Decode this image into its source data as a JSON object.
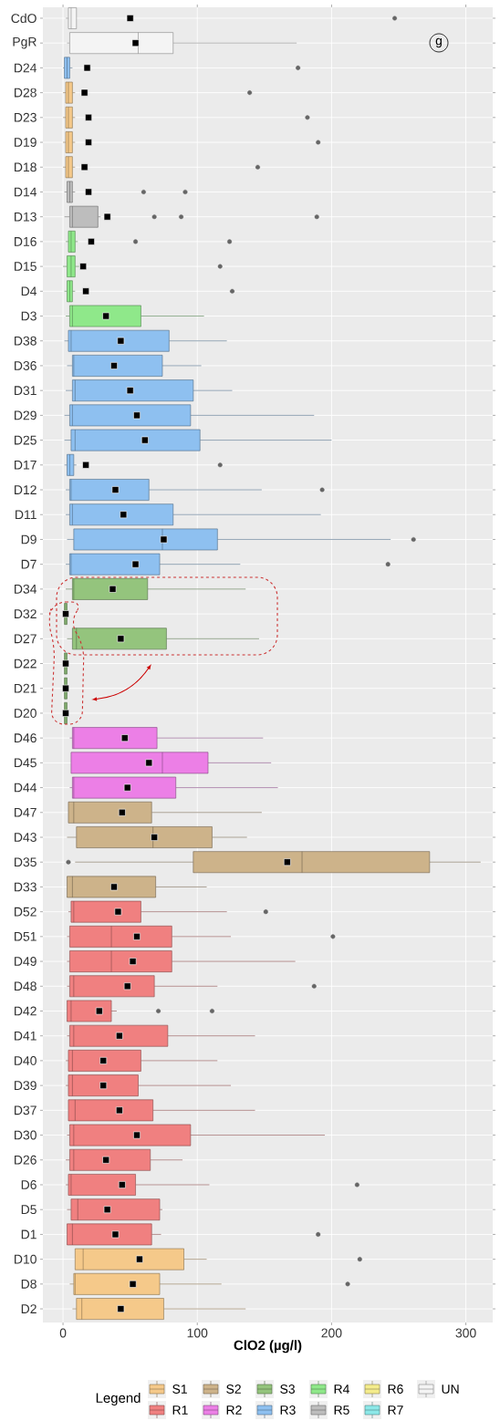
{
  "chart_data": {
    "type": "box",
    "orientation": "horizontal",
    "xlabel": "ClO2 (µg/l)",
    "legend_title": "Legend",
    "legend": "bottom",
    "grid": true,
    "annotations": [
      "g"
    ],
    "xlim": [
      -15,
      320
    ],
    "xticks": [
      0,
      100,
      200,
      300
    ],
    "categories": [
      "CdO",
      "PgR",
      "D24",
      "D28",
      "D23",
      "D19",
      "D18",
      "D14",
      "D13",
      "D16",
      "D15",
      "D4",
      "D3",
      "D38",
      "D36",
      "D31",
      "D29",
      "D25",
      "D17",
      "D12",
      "D11",
      "D9",
      "D7",
      "D34",
      "D32",
      "D27",
      "D22",
      "D21",
      "D20",
      "D46",
      "D45",
      "D44",
      "D47",
      "D43",
      "D35",
      "D33",
      "D52",
      "D51",
      "D49",
      "D48",
      "D42",
      "D41",
      "D40",
      "D39",
      "D37",
      "D30",
      "D26",
      "D6",
      "D5",
      "D1",
      "D10",
      "D8",
      "D2"
    ],
    "series": [
      {
        "name": "S1",
        "color": "#f5c98a",
        "boxes": [
          null,
          null,
          null,
          {
            "low": 0,
            "q1": 2,
            "median": 4,
            "q3": 7,
            "high": 9,
            "mean": 16,
            "outliers": [
              139
            ]
          },
          {
            "low": 0,
            "q1": 2,
            "median": 4,
            "q3": 7,
            "high": 9,
            "mean": 19,
            "outliers": [
              182
            ]
          },
          {
            "low": 0,
            "q1": 2,
            "median": 4,
            "q3": 7,
            "high": 9,
            "mean": 19,
            "outliers": [
              190
            ]
          },
          {
            "low": 0,
            "q1": 2,
            "median": 4,
            "q3": 7,
            "high": 9,
            "mean": 16,
            "outliers": [
              145
            ]
          },
          null,
          null,
          null,
          null,
          null,
          null,
          null,
          null,
          null,
          null,
          null,
          null,
          null,
          null,
          null,
          null,
          null,
          null,
          null,
          null,
          null,
          null,
          null,
          null,
          null,
          null,
          null,
          null,
          null,
          null,
          null,
          null,
          null,
          null,
          null,
          null,
          null,
          null,
          null,
          null,
          null,
          null,
          null,
          {
            "low": 9,
            "q1": 9,
            "median": 15,
            "q3": 90,
            "high": 107,
            "mean": 57,
            "outliers": [
              221
            ]
          },
          {
            "low": 5,
            "q1": 8,
            "median": 9,
            "q3": 72,
            "high": 118,
            "mean": 52,
            "outliers": [
              212
            ]
          },
          {
            "low": 7,
            "q1": 10,
            "median": 14,
            "q3": 75,
            "high": 136,
            "mean": 43
          }
        ]
      },
      {
        "name": "R1",
        "color": "#f08080",
        "boxes": [
          null,
          null,
          null,
          null,
          null,
          null,
          null,
          null,
          null,
          null,
          null,
          null,
          null,
          null,
          null,
          null,
          null,
          null,
          null,
          null,
          null,
          null,
          null,
          null,
          null,
          null,
          null,
          null,
          null,
          null,
          null,
          null,
          null,
          null,
          null,
          null,
          {
            "low": 4,
            "q1": 6,
            "median": 8,
            "q3": 58,
            "high": 122,
            "mean": 41,
            "outliers": [
              151
            ]
          },
          {
            "low": 3,
            "q1": 5,
            "median": 36,
            "q3": 81,
            "high": 125,
            "mean": 55,
            "outliers": [
              201
            ]
          },
          {
            "low": 3,
            "q1": 5,
            "median": 36,
            "q3": 81,
            "high": 173,
            "mean": 52
          },
          {
            "low": 3,
            "q1": 5,
            "median": 8,
            "q3": 68,
            "high": 115,
            "mean": 48,
            "outliers": [
              187
            ]
          },
          {
            "low": 3,
            "q1": 3,
            "median": 6,
            "q3": 36,
            "high": 40,
            "mean": 27,
            "outliers": [
              71,
              111
            ]
          },
          {
            "low": 3,
            "q1": 5,
            "median": 8,
            "q3": 78,
            "high": 143,
            "mean": 42
          },
          {
            "low": 2,
            "q1": 4,
            "median": 7,
            "q3": 58,
            "high": 115,
            "mean": 30
          },
          {
            "low": 2,
            "q1": 4,
            "median": 7,
            "q3": 56,
            "high": 125,
            "mean": 30
          },
          {
            "low": 4,
            "q1": 4,
            "median": 9,
            "q3": 67,
            "high": 143,
            "mean": 42
          },
          {
            "low": 3,
            "q1": 5,
            "median": 8,
            "q3": 95,
            "high": 195,
            "mean": 55
          },
          {
            "low": 2,
            "q1": 5,
            "median": 8,
            "q3": 65,
            "high": 89,
            "mean": 32
          },
          {
            "low": 2,
            "q1": 4,
            "median": 6,
            "q3": 54,
            "high": 109,
            "mean": 44,
            "outliers": [
              219
            ]
          },
          {
            "low": 3,
            "q1": 6,
            "median": 11,
            "q3": 72,
            "high": 74,
            "mean": 33
          },
          {
            "low": 3,
            "q1": 3,
            "median": 7,
            "q3": 66,
            "high": 73,
            "mean": 39,
            "outliers": [
              190
            ]
          },
          null,
          null,
          null
        ]
      },
      {
        "name": "S2",
        "color": "#cdb38a",
        "boxes": [
          null,
          null,
          null,
          null,
          null,
          null,
          null,
          null,
          null,
          null,
          null,
          null,
          null,
          null,
          null,
          null,
          null,
          null,
          null,
          null,
          null,
          null,
          null,
          null,
          null,
          null,
          null,
          null,
          null,
          null,
          null,
          null,
          {
            "low": 4,
            "q1": 4,
            "median": 8,
            "q3": 66,
            "high": 148,
            "mean": 44
          },
          {
            "low": 3,
            "q1": 10,
            "median": 67,
            "q3": 111,
            "high": 137,
            "mean": 68
          },
          {
            "low": 9,
            "q1": 97,
            "median": 178,
            "q3": 273,
            "high": 311,
            "mean": 167,
            "outliers": [
              4
            ]
          },
          {
            "low": 3,
            "q1": 3,
            "median": 7,
            "q3": 69,
            "high": 107,
            "mean": 38
          },
          null,
          null,
          null,
          null,
          null,
          null,
          null,
          null,
          null,
          null,
          null,
          null,
          null,
          null,
          null,
          null,
          null
        ]
      },
      {
        "name": "R2",
        "color": "#ec7fe6",
        "boxes": [
          null,
          null,
          null,
          null,
          null,
          null,
          null,
          null,
          null,
          null,
          null,
          null,
          null,
          null,
          null,
          null,
          null,
          null,
          null,
          null,
          null,
          null,
          null,
          null,
          null,
          null,
          null,
          null,
          null,
          {
            "low": 5,
            "q1": 7,
            "median": 8,
            "q3": 70,
            "high": 149,
            "mean": 46
          },
          {
            "low": 6,
            "q1": 6,
            "median": 74,
            "q3": 108,
            "high": 155,
            "mean": 64
          },
          {
            "low": 5,
            "q1": 7,
            "median": 8,
            "q3": 84,
            "high": 160,
            "mean": 48
          },
          null,
          null,
          null,
          null,
          null,
          null,
          null,
          null,
          null,
          null,
          null,
          null,
          null,
          null,
          null,
          null,
          null,
          null,
          null,
          null,
          null
        ]
      },
      {
        "name": "S3",
        "color": "#94c47d",
        "boxes": [
          null,
          null,
          null,
          null,
          null,
          null,
          null,
          null,
          null,
          null,
          null,
          null,
          null,
          null,
          null,
          null,
          null,
          null,
          null,
          null,
          null,
          null,
          null,
          {
            "low": 2,
            "q1": 7,
            "median": 8,
            "q3": 63,
            "high": 136,
            "mean": 37
          },
          {
            "low": 0,
            "q1": 1,
            "median": 2,
            "q3": 3,
            "high": 4,
            "mean": 2
          },
          {
            "low": 3,
            "q1": 7,
            "median": 10,
            "q3": 77,
            "high": 146,
            "mean": 43
          },
          {
            "low": 0,
            "q1": 1,
            "median": 2,
            "q3": 3,
            "high": 4,
            "mean": 2
          },
          {
            "low": 0,
            "q1": 1,
            "median": 2,
            "q3": 3,
            "high": 4,
            "mean": 2
          },
          {
            "low": 0,
            "q1": 1,
            "median": 2,
            "q3": 3,
            "high": 4,
            "mean": 2
          },
          null,
          null,
          null,
          null,
          null,
          null,
          null,
          null,
          null,
          null,
          null,
          null,
          null,
          null,
          null,
          null,
          null,
          null,
          null,
          null,
          null,
          null,
          null,
          null
        ]
      },
      {
        "name": "R3",
        "color": "#8ec0f0",
        "boxes": [
          null,
          null,
          {
            "low": 0,
            "q1": 1,
            "median": 3,
            "q3": 5,
            "high": 7,
            "mean": 18,
            "outliers": [
              175
            ]
          },
          null,
          null,
          null,
          null,
          null,
          null,
          null,
          null,
          null,
          null,
          {
            "low": 1,
            "q1": 4,
            "median": 6,
            "q3": 79,
            "high": 122,
            "mean": 43
          },
          {
            "low": 3,
            "q1": 7,
            "median": 8,
            "q3": 74,
            "high": 103,
            "mean": 38
          },
          {
            "low": 2,
            "q1": 7,
            "median": 9,
            "q3": 97,
            "high": 126,
            "mean": 50
          },
          {
            "low": 1,
            "q1": 5,
            "median": 7,
            "q3": 95,
            "high": 187,
            "mean": 55
          },
          {
            "low": 1,
            "q1": 6,
            "median": 9,
            "q3": 102,
            "high": 200,
            "mean": 61
          },
          {
            "low": 1,
            "q1": 3,
            "median": 5,
            "q3": 8,
            "high": 10,
            "mean": 17,
            "outliers": [
              117
            ]
          },
          {
            "low": 2,
            "q1": 5,
            "median": 6,
            "q3": 64,
            "high": 148,
            "mean": 39,
            "outliers": [
              193
            ]
          },
          {
            "low": 2,
            "q1": 5,
            "median": 7,
            "q3": 82,
            "high": 192,
            "mean": 45
          },
          {
            "low": 3,
            "q1": 8,
            "median": 74,
            "q3": 115,
            "high": 244,
            "mean": 75,
            "outliers": [
              261
            ]
          },
          {
            "low": 2,
            "q1": 5,
            "median": 6,
            "q3": 72,
            "high": 132,
            "mean": 54,
            "outliers": [
              242
            ]
          },
          null,
          null,
          null,
          null,
          null,
          null,
          null,
          null,
          null,
          null,
          null,
          null,
          null,
          null,
          null,
          null,
          null,
          null,
          null,
          null,
          null,
          null,
          null,
          null,
          null,
          null,
          null,
          null,
          null,
          null
        ]
      },
      {
        "name": "R4",
        "color": "#8fe88a",
        "boxes": [
          null,
          null,
          null,
          null,
          null,
          null,
          null,
          null,
          null,
          {
            "low": 2,
            "q1": 4,
            "median": 6,
            "q3": 9,
            "high": 11,
            "mean": 21,
            "outliers": [
              54,
              124
            ]
          },
          {
            "low": 0,
            "q1": 3,
            "median": 6,
            "q3": 9,
            "high": 12,
            "mean": 15,
            "outliers": [
              117
            ]
          },
          {
            "low": 1,
            "q1": 3,
            "median": 5,
            "q3": 7,
            "high": 9,
            "mean": 17,
            "outliers": [
              126
            ]
          },
          {
            "low": 2,
            "q1": 5,
            "median": 7,
            "q3": 58,
            "high": 105,
            "mean": 32
          },
          null,
          null,
          null,
          null,
          null,
          null,
          null,
          null,
          null,
          null,
          null,
          null,
          null,
          null,
          null,
          null,
          null,
          null,
          null,
          null,
          null,
          null,
          null,
          null,
          null,
          null,
          null,
          null,
          null,
          null,
          null,
          null,
          null,
          null,
          null,
          null,
          null,
          null,
          null,
          null
        ]
      },
      {
        "name": "R5",
        "color": "#bdbdbd",
        "boxes": [
          null,
          null,
          null,
          null,
          null,
          null,
          null,
          {
            "low": 1,
            "q1": 3,
            "median": 5,
            "q3": 7,
            "high": 9,
            "mean": 19,
            "outliers": [
              60,
              91
            ]
          },
          {
            "low": 1,
            "q1": 5,
            "median": 7,
            "q3": 26,
            "high": 28,
            "mean": 33,
            "outliers": [
              68,
              88,
              189
            ]
          },
          null,
          null,
          null,
          null,
          null,
          null,
          null,
          null,
          null,
          null,
          null,
          null,
          null,
          null,
          null,
          null,
          null,
          null,
          null,
          null,
          null,
          null,
          null,
          null,
          null,
          null,
          null,
          null,
          null,
          null,
          null,
          null,
          null,
          null,
          null,
          null,
          null,
          null,
          null,
          null,
          null,
          null,
          null,
          null
        ]
      },
      {
        "name": "R6",
        "color": "#f4ec8c",
        "boxes": [
          null,
          null,
          null,
          null,
          null,
          null,
          null,
          null,
          null,
          null,
          null,
          null,
          null,
          null,
          null,
          null,
          null,
          null,
          null,
          null,
          null,
          null,
          null,
          null,
          null,
          null,
          null,
          null,
          null,
          null,
          null,
          null,
          null,
          null,
          null,
          null,
          null,
          null,
          null,
          null,
          null,
          null,
          null,
          null,
          null,
          null,
          null,
          null,
          null,
          null,
          null,
          null,
          null
        ]
      },
      {
        "name": "R7",
        "color": "#8ce8e8",
        "boxes": [
          null,
          null,
          null,
          null,
          null,
          null,
          null,
          null,
          null,
          null,
          null,
          null,
          null,
          null,
          null,
          null,
          null,
          null,
          null,
          null,
          null,
          null,
          null,
          null,
          null,
          null,
          null,
          null,
          null,
          null,
          null,
          null,
          null,
          null,
          null,
          null,
          null,
          null,
          null,
          null,
          null,
          null,
          null,
          null,
          null,
          null,
          null,
          null,
          null,
          null,
          null,
          null,
          null
        ]
      },
      {
        "name": "UN",
        "color": "#f4f4f4",
        "boxes": [
          {
            "low": 2,
            "q1": 4,
            "median": 6,
            "q3": 10,
            "high": 10,
            "mean": 50,
            "outliers": [
              247
            ]
          },
          {
            "low": 3,
            "q1": 5,
            "median": 56,
            "q3": 82,
            "high": 174,
            "mean": 54
          },
          null,
          null,
          null,
          null,
          null,
          null,
          null,
          null,
          null,
          null,
          null,
          null,
          null,
          null,
          null,
          null,
          null,
          null,
          null,
          null,
          null,
          null,
          null,
          null,
          null,
          null,
          null,
          null,
          null,
          null,
          null,
          null,
          null,
          null,
          null,
          null,
          null,
          null,
          null,
          null,
          null,
          null,
          null,
          null,
          null,
          null,
          null,
          null,
          null,
          null,
          null
        ]
      }
    ]
  }
}
